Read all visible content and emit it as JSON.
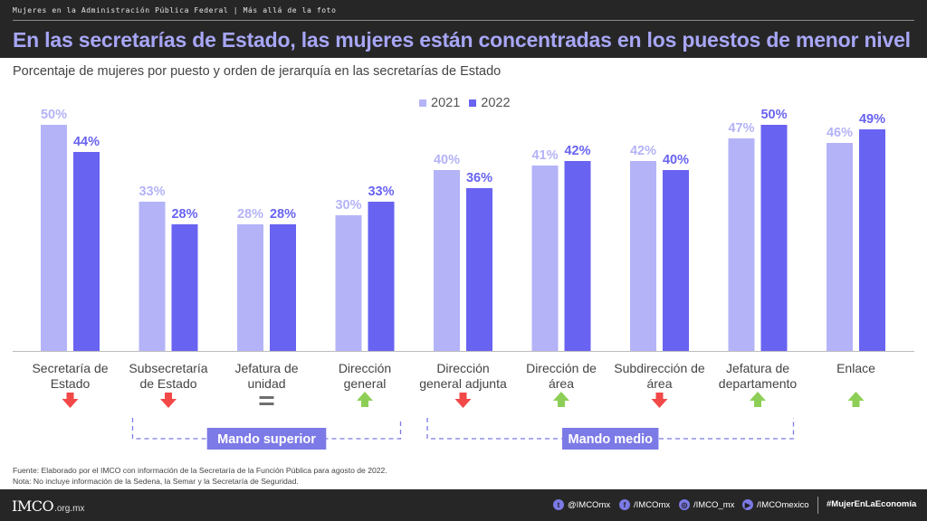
{
  "header": {
    "top_label": "Mujeres en la Administración Pública Federal | Más allá de la foto",
    "title": "En las secretarías de Estado, las mujeres están concentradas en los puestos de menor nivel"
  },
  "subtitle": "Porcentaje de mujeres por puesto y orden de jerarquía en las secretarías de Estado",
  "colors": {
    "y2021": "#b4b3f8",
    "y2022": "#6863f0",
    "down": "#f24848",
    "up": "#8dcf56",
    "equal": "#6f6f6f",
    "bracket": "#7c7ae6"
  },
  "chart_data": {
    "type": "bar",
    "title": "Porcentaje de mujeres por puesto y orden de jerarquía en las secretarías de Estado",
    "categories": [
      [
        "Secretaría de",
        "Estado"
      ],
      [
        "Subsecretaría",
        "de Estado"
      ],
      [
        "Jefatura de",
        "unidad"
      ],
      [
        "Dirección",
        "general"
      ],
      [
        "Dirección",
        "general adjunta"
      ],
      [
        "Dirección de",
        "área"
      ],
      [
        "Subdirección de",
        "área"
      ],
      [
        "Jefatura de",
        "departamento"
      ],
      [
        "Enlace"
      ]
    ],
    "series": [
      {
        "name": "2021",
        "values": [
          50,
          33,
          28,
          30,
          40,
          41,
          42,
          47,
          46
        ]
      },
      {
        "name": "2022",
        "values": [
          44,
          28,
          28,
          33,
          36,
          42,
          40,
          50,
          49
        ]
      }
    ],
    "value_labels": {
      "2021": [
        "50%",
        "33%",
        "28%",
        "30%",
        "40%",
        "41%",
        "42%",
        "47%",
        "46%"
      ],
      "2022": [
        "44%",
        "28%",
        "28%",
        "33%",
        "36%",
        "42%",
        "40%",
        "50%",
        "49%"
      ]
    },
    "trend": [
      "down",
      "down",
      "equal",
      "up",
      "down",
      "up",
      "down",
      "up",
      "up"
    ],
    "ylim": [
      0,
      50
    ],
    "legend_position": "top",
    "groups": [
      {
        "label": "Mando superior",
        "from": 1,
        "to": 3
      },
      {
        "label": "Mando medio",
        "from": 4,
        "to": 7
      }
    ]
  },
  "footer": {
    "source": "Fuente: Elaborado por el IMCO con información de la Secretaría de la Función Pública para agosto de 2022.",
    "note": "Nota: No incluye información de la Sedena, la Semar y la Secretaría de Seguridad.",
    "logo": "IMCO",
    "logo_domain": ".org.mx",
    "social": [
      {
        "icon": "twitter-icon",
        "glyph": "t",
        "handle": "@IMCOmx"
      },
      {
        "icon": "facebook-icon",
        "glyph": "f",
        "handle": "/IMCOmx"
      },
      {
        "icon": "instagram-icon",
        "glyph": "◎",
        "handle": "/IMCO_mx"
      },
      {
        "icon": "youtube-icon",
        "glyph": "▶",
        "handle": "/IMCOmexico"
      }
    ],
    "hashtag": "#MujerEnLaEconomía"
  }
}
